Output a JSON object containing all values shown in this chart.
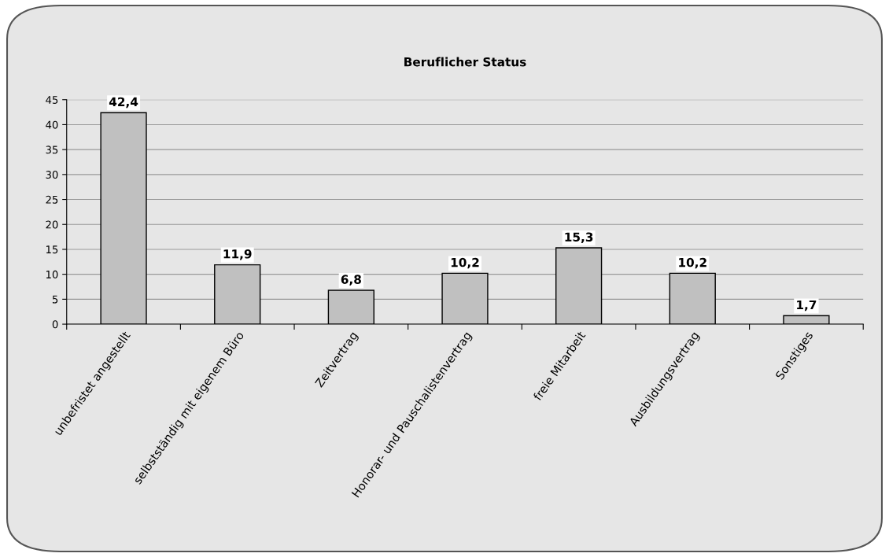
{
  "chart_data": {
    "type": "bar",
    "title": "Beruflicher Status",
    "categories": [
      "unbefristet angestellt",
      "selbstständig mit eigenem Büro",
      "Zeitvertrag",
      "Honorar- und Pauschalistenvertrag",
      "freie Mitarbeit",
      "Ausbildungsvertrag",
      "Sonstiges"
    ],
    "values": [
      42.4,
      11.9,
      6.8,
      10.2,
      15.3,
      10.2,
      1.7
    ],
    "value_labels": [
      "42,4",
      "11,9",
      "6,8",
      "10,2",
      "15,3",
      "10,2",
      "1,7"
    ],
    "color": "#c0c0c0",
    "ylim": [
      0,
      45
    ],
    "yticks": [
      0,
      5,
      10,
      15,
      20,
      25,
      30,
      35,
      40,
      45
    ],
    "grid": "y",
    "legend": false
  }
}
